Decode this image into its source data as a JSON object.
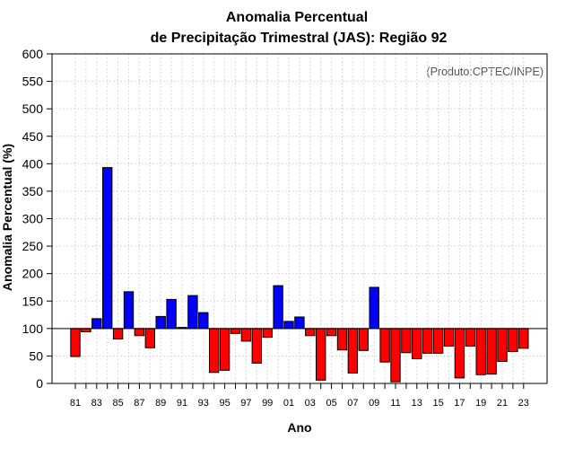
{
  "chart_data": {
    "type": "bar",
    "title": [
      "Anomalia Percentual",
      "de Precipitação Trimestral (JAS): Região 92"
    ],
    "credit": "(Produto:CPTEC/INPE)",
    "xlabel": "Ano",
    "ylabel": "Anomalia Percentual (%)",
    "baseline": 100,
    "ylim": [
      0,
      600
    ],
    "yticks": [
      0,
      50,
      100,
      150,
      200,
      250,
      300,
      350,
      400,
      450,
      500,
      550,
      600
    ],
    "grid": true,
    "colors": {
      "above": "#0000ff",
      "below": "#ff0000",
      "edge": "#000000",
      "grid": "#d9d9d9"
    },
    "categories": [
      "81",
      "82",
      "83",
      "84",
      "85",
      "86",
      "87",
      "88",
      "89",
      "90",
      "91",
      "92",
      "93",
      "94",
      "95",
      "96",
      "97",
      "98",
      "99",
      "00",
      "01",
      "02",
      "03",
      "04",
      "05",
      "06",
      "07",
      "08",
      "09",
      "10",
      "11",
      "12",
      "13",
      "14",
      "15",
      "16",
      "17",
      "18",
      "19",
      "20",
      "21",
      "22",
      "23"
    ],
    "x_tick_labels": [
      "81",
      "83",
      "85",
      "87",
      "89",
      "91",
      "93",
      "95",
      "97",
      "99",
      "01",
      "03",
      "05",
      "07",
      "09",
      "11",
      "13",
      "15",
      "17",
      "19",
      "21",
      "23"
    ],
    "values": [
      49,
      94,
      118,
      393,
      81,
      167,
      87,
      65,
      122,
      153,
      102,
      160,
      129,
      20,
      24,
      91,
      77,
      37,
      84,
      178,
      113,
      121,
      87,
      6,
      87,
      61,
      19,
      60,
      175,
      39,
      3,
      56,
      45,
      55,
      55,
      68,
      10,
      68,
      16,
      17,
      40,
      58,
      64
    ]
  }
}
